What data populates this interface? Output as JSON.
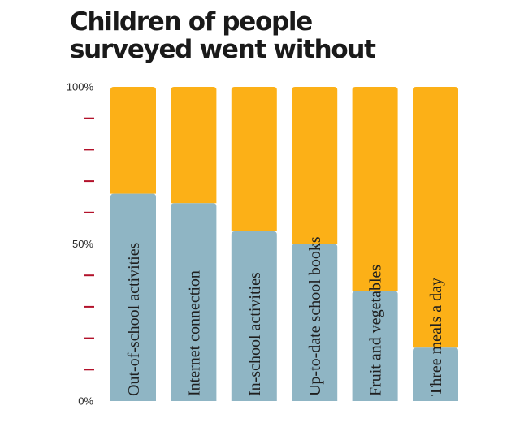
{
  "title": "Children of people\nsurveyed went without",
  "colors": {
    "went_without": "#fcb017",
    "did_not": "#8fb5c4",
    "tick_mark": "#b3122b",
    "text": "#1f1f1f"
  },
  "chart_data": {
    "type": "bar",
    "stacked": true,
    "orientation": "vertical",
    "title": "Children of people surveyed went without",
    "categories": [
      "Out-of-school activities",
      "Internet connection",
      "In-school activities",
      "Up-to-date school books",
      "Fruit and vegetables",
      "Three meals a day"
    ],
    "series": [
      {
        "color": "#8fb5c4",
        "values": [
          66,
          63,
          54,
          50,
          35,
          17
        ]
      },
      {
        "color": "#fcb017",
        "values": [
          34,
          37,
          46,
          50,
          65,
          83
        ]
      }
    ],
    "y_ticks": [
      "100%",
      "50%",
      "0%"
    ],
    "ylim": [
      0,
      100
    ],
    "minor_tick_count": 8,
    "grid": false,
    "legend": "none",
    "category_labels": "rotated vertical inside bars"
  }
}
